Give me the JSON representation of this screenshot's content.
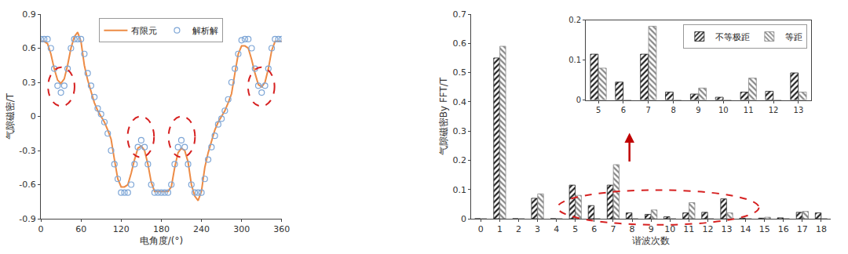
{
  "chart_data": [
    {
      "type": "line",
      "xlabel": "电角度/(°)",
      "ylabel": "气隙磁密/T",
      "x": [
        0,
        5,
        10,
        15,
        20,
        25,
        30,
        35,
        40,
        45,
        50,
        55,
        60,
        65,
        70,
        75,
        80,
        85,
        90,
        95,
        100,
        105,
        110,
        115,
        120,
        125,
        130,
        135,
        140,
        145,
        150,
        155,
        160,
        165,
        170,
        175,
        180,
        185,
        190,
        195,
        200,
        205,
        210,
        215,
        220,
        225,
        230,
        235,
        240,
        245,
        250,
        255,
        260,
        265,
        270,
        275,
        280,
        285,
        290,
        295,
        300,
        305,
        310,
        315,
        320,
        325,
        330,
        335,
        340,
        345,
        350,
        355,
        360
      ],
      "series": [
        {
          "name": "有限元",
          "type": "line",
          "color": "#ed8b45",
          "line_style": "solid",
          "values": [
            0.66,
            0.66,
            0.64,
            0.55,
            0.42,
            0.32,
            0.29,
            0.33,
            0.45,
            0.6,
            0.7,
            0.74,
            0.66,
            0.45,
            0.32,
            0.22,
            0.12,
            0.05,
            0.0,
            -0.05,
            -0.12,
            -0.2,
            -0.38,
            -0.55,
            -0.62,
            -0.62,
            -0.6,
            -0.5,
            -0.38,
            -0.28,
            -0.26,
            -0.3,
            -0.42,
            -0.58,
            -0.66,
            -0.66,
            -0.66,
            -0.66,
            -0.66,
            -0.62,
            -0.45,
            -0.32,
            -0.28,
            -0.3,
            -0.4,
            -0.6,
            -0.7,
            -0.74,
            -0.66,
            -0.45,
            -0.32,
            -0.22,
            -0.12,
            -0.05,
            0.0,
            0.05,
            0.12,
            0.2,
            0.38,
            0.55,
            0.62,
            0.62,
            0.6,
            0.5,
            0.38,
            0.28,
            0.26,
            0.3,
            0.42,
            0.58,
            0.66,
            0.66,
            0.66
          ]
        },
        {
          "name": "解析解",
          "type": "scatter",
          "color": "#7ea6d6",
          "marker": "circle-open",
          "values": [
            0.68,
            0.68,
            0.68,
            0.6,
            0.42,
            0.27,
            0.21,
            0.27,
            0.42,
            0.6,
            0.68,
            0.68,
            0.68,
            0.55,
            0.38,
            0.27,
            0.17,
            0.07,
            0.02,
            -0.05,
            -0.15,
            -0.3,
            -0.42,
            -0.55,
            -0.67,
            -0.67,
            -0.67,
            -0.6,
            -0.42,
            -0.27,
            -0.21,
            -0.27,
            -0.42,
            -0.6,
            -0.67,
            -0.67,
            -0.67,
            -0.67,
            -0.67,
            -0.6,
            -0.42,
            -0.27,
            -0.21,
            -0.27,
            -0.42,
            -0.6,
            -0.67,
            -0.67,
            -0.67,
            -0.55,
            -0.38,
            -0.27,
            -0.17,
            -0.07,
            -0.02,
            0.05,
            0.15,
            0.3,
            0.42,
            0.55,
            0.67,
            0.68,
            0.68,
            0.6,
            0.42,
            0.27,
            0.21,
            0.27,
            0.42,
            0.6,
            0.68,
            0.68,
            0.68
          ]
        }
      ],
      "xlim": [
        0,
        360
      ],
      "xticks": [
        0,
        60,
        120,
        180,
        240,
        300,
        360
      ],
      "ylim": [
        -0.9,
        0.9
      ],
      "yticks": [
        -0.9,
        -0.6,
        -0.3,
        0,
        0.3,
        0.6,
        0.9
      ],
      "grid": false,
      "legend": "upper center"
    },
    {
      "type": "bar",
      "xlabel": "谐波次数",
      "ylabel": "气隙磁密By FFT/T",
      "x": [
        0,
        1,
        2,
        3,
        4,
        5,
        6,
        7,
        8,
        9,
        10,
        11,
        12,
        13,
        14,
        15,
        16,
        17,
        18
      ],
      "series": [
        {
          "name": "不等极距",
          "color": "#222222",
          "marker": "diagonal",
          "values": [
            0,
            0.55,
            0,
            0.07,
            0,
            0.115,
            0.045,
            0.115,
            0.02,
            0.015,
            0.007,
            0.02,
            0.022,
            0.068,
            0.002,
            0.002,
            0.003,
            0.022,
            0.02
          ]
        },
        {
          "name": "等距",
          "color": "#888888",
          "marker": "backdiagonal",
          "values": [
            0,
            0.59,
            0,
            0.085,
            0,
            0.08,
            0,
            0.185,
            0,
            0.03,
            0,
            0.055,
            0,
            0.02,
            0,
            0.005,
            0,
            0.025,
            0
          ]
        }
      ],
      "xlim": [
        -0.5,
        18.5
      ],
      "xticks": [
        0,
        1,
        2,
        3,
        4,
        5,
        6,
        7,
        8,
        9,
        10,
        11,
        12,
        13,
        14,
        15,
        16,
        17,
        18
      ],
      "ylim": [
        0,
        0.7
      ],
      "yticks": [
        0,
        0.1,
        0.2,
        0.3,
        0.4,
        0.5,
        0.6,
        0.7
      ],
      "grid": false
    },
    {
      "type": "bar",
      "x": [
        5,
        6,
        7,
        8,
        9,
        10,
        11,
        12,
        13
      ],
      "series": [
        {
          "name": "不等极距",
          "color": "#222222",
          "marker": "diagonal",
          "values": [
            0.115,
            0.045,
            0.115,
            0.02,
            0.015,
            0.007,
            0.02,
            0.022,
            0.068
          ]
        },
        {
          "name": "等距",
          "color": "#888888",
          "marker": "backdiagonal",
          "values": [
            0.08,
            0,
            0.185,
            0,
            0.03,
            0,
            0.055,
            0,
            0.02
          ]
        }
      ],
      "xlim": [
        4.5,
        13.5
      ],
      "xticks": [
        5,
        6,
        7,
        8,
        9,
        10,
        11,
        12,
        13
      ],
      "ylim": [
        0,
        0.2
      ],
      "yticks": [
        0,
        0.1,
        0.2
      ],
      "grid": false,
      "legend": "upper right"
    }
  ]
}
